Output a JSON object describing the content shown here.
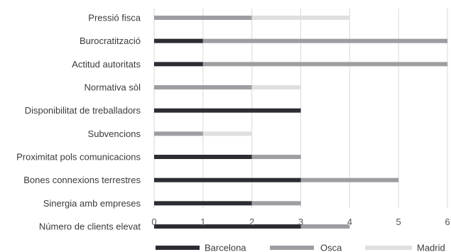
{
  "chart_data": {
    "type": "bar",
    "orientation": "horizontal",
    "stacked": true,
    "categories": [
      "Pressió fisca",
      "Burocratització",
      "Actitud autoritats",
      "Normativa sòl",
      "Disponibilitat de treballadors",
      "Subvencions",
      "Proximitat pols comunicacions",
      "Bones connexions terrestres",
      "Sinergia amb empreses",
      "Número de clients elevat"
    ],
    "series": [
      {
        "name": "Barcelona",
        "color": "#2b2d33",
        "values": [
          0,
          1,
          1,
          0,
          3,
          0,
          2,
          3,
          2,
          3
        ]
      },
      {
        "name": "Osca",
        "color": "#9d9ea2",
        "values": [
          2,
          5,
          5,
          2,
          0,
          1,
          1,
          2,
          1,
          1
        ]
      },
      {
        "name": "Madrid",
        "color": "#dfdfe0",
        "values": [
          2,
          0,
          0,
          1,
          0,
          1,
          0,
          0,
          0,
          0
        ]
      }
    ],
    "xlim": [
      0,
      6
    ],
    "xticks": [
      "0",
      "1",
      "2",
      "3",
      "4",
      "5",
      "6"
    ],
    "grid": true,
    "legend_position": "bottom"
  }
}
